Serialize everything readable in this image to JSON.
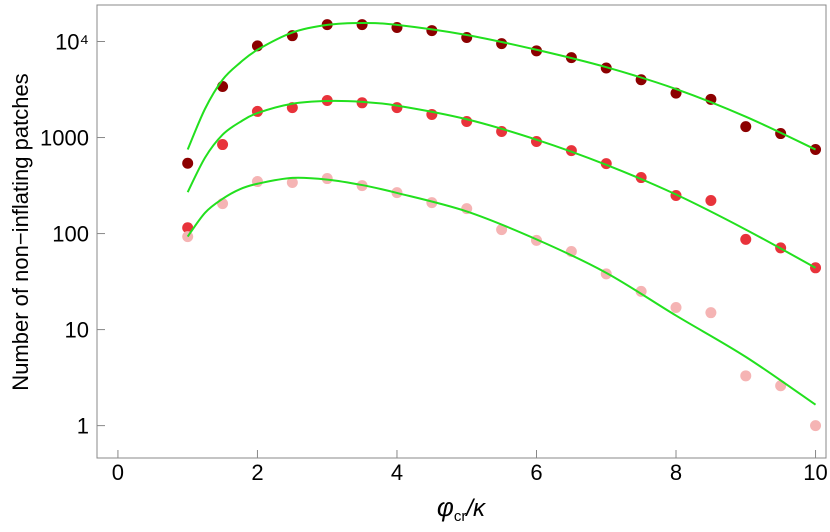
{
  "chart_data": {
    "type": "scatter",
    "ylabel": "Number of non−inflating patches",
    "xlabel": {
      "symbol": "φ",
      "sub": "cr",
      "rest": "/κ"
    },
    "xlim": [
      -0.3,
      10.15
    ],
    "ylim": [
      0.46,
      24000
    ],
    "ylog": true,
    "xticks": [
      0,
      2,
      4,
      6,
      8,
      10
    ],
    "yticks": [
      1,
      10,
      100,
      1000,
      {
        "value": 10000,
        "label": "10⁴"
      }
    ],
    "x": [
      1,
      1.5,
      2,
      2.5,
      3,
      3.5,
      4,
      4.5,
      5,
      5.5,
      6,
      6.5,
      7,
      7.5,
      8,
      8.5,
      9,
      9.5,
      10
    ],
    "series": [
      {
        "color": "#8c0000",
        "values": [
          540,
          3400,
          9000,
          11500,
          15000,
          15000,
          14000,
          13000,
          11000,
          9500,
          8000,
          6800,
          5300,
          4000,
          2900,
          2500,
          1300,
          1100,
          750
        ]
      },
      {
        "color": "#e8333b",
        "values": [
          115,
          845,
          1870,
          2050,
          2430,
          2300,
          2050,
          1740,
          1470,
          1155,
          910,
          730,
          535,
          383,
          249,
          221,
          87,
          71,
          44
        ]
      },
      {
        "color": "#f5b4b4",
        "values": [
          93,
          205,
          348,
          340,
          374,
          316,
          267,
          210,
          182,
          110,
          85,
          65,
          38,
          25,
          17,
          15,
          3.3,
          2.6,
          1
        ]
      }
    ],
    "fit_x": [
      1,
      1.25,
      1.5,
      1.75,
      2,
      2.5,
      3,
      3.5,
      4,
      5,
      6,
      7,
      8,
      9,
      10
    ],
    "fits": [
      {
        "color": "#22e01e",
        "values": [
          750,
          2000,
          4000,
          6000,
          8200,
          12400,
          14900,
          15600,
          14900,
          11700,
          8200,
          5400,
          3200,
          1650,
          750
        ]
      },
      {
        "color": "#22e01e",
        "values": [
          270,
          620,
          1070,
          1450,
          1800,
          2250,
          2400,
          2350,
          2150,
          1550,
          950,
          520,
          255,
          110,
          44
        ]
      },
      {
        "color": "#22e01e",
        "values": [
          93,
          165,
          230,
          290,
          330,
          380,
          365,
          320,
          265,
          170,
          87,
          39,
          14,
          5.2,
          1.65
        ]
      }
    ]
  }
}
